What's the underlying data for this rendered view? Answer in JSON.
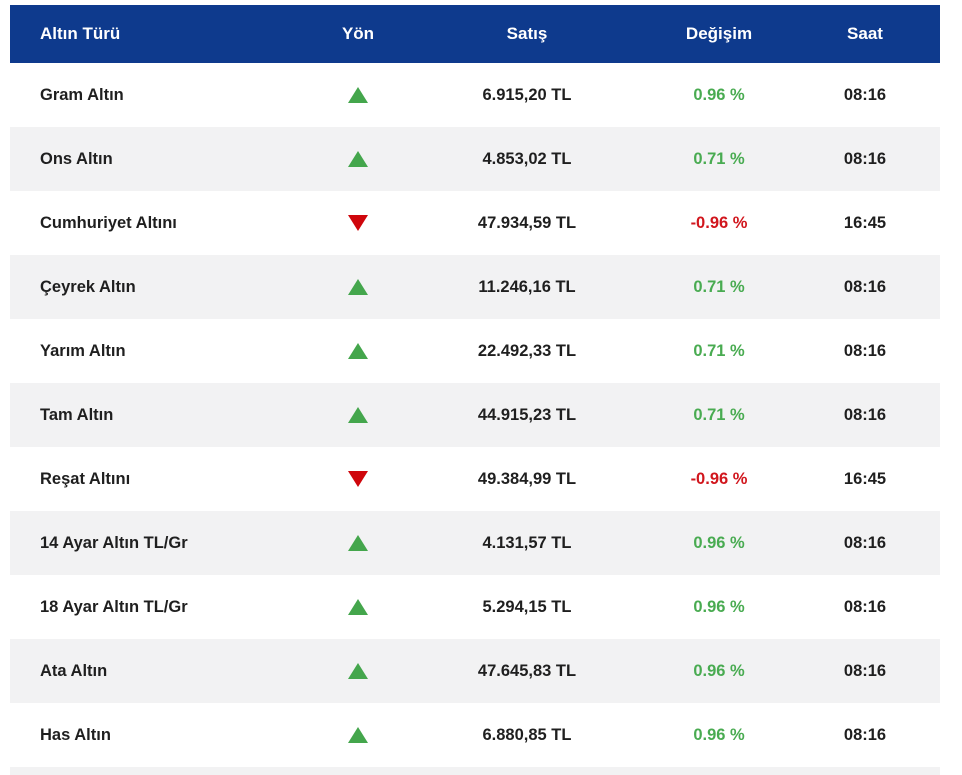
{
  "table": {
    "columns": [
      {
        "label": "Altın Türü"
      },
      {
        "label": "Yön"
      },
      {
        "label": "Satış"
      },
      {
        "label": "Değişim"
      },
      {
        "label": "Saat"
      }
    ],
    "rows": [
      {
        "type": "Gram Altın",
        "direction": "up",
        "price": "6.915,20 TL",
        "change": "0.96 %",
        "time": "08:16"
      },
      {
        "type": "Ons Altın",
        "direction": "up",
        "price": "4.853,02 TL",
        "change": "0.71 %",
        "time": "08:16"
      },
      {
        "type": "Cumhuriyet Altını",
        "direction": "down",
        "price": "47.934,59 TL",
        "change": "-0.96 %",
        "time": "16:45"
      },
      {
        "type": "Çeyrek Altın",
        "direction": "up",
        "price": "11.246,16 TL",
        "change": "0.71 %",
        "time": "08:16"
      },
      {
        "type": "Yarım Altın",
        "direction": "up",
        "price": "22.492,33 TL",
        "change": "0.71 %",
        "time": "08:16"
      },
      {
        "type": "Tam Altın",
        "direction": "up",
        "price": "44.915,23 TL",
        "change": "0.71 %",
        "time": "08:16"
      },
      {
        "type": "Reşat Altını",
        "direction": "down",
        "price": "49.384,99 TL",
        "change": "-0.96 %",
        "time": "16:45"
      },
      {
        "type": "14 Ayar Altın TL/Gr",
        "direction": "up",
        "price": "4.131,57 TL",
        "change": "0.96 %",
        "time": "08:16"
      },
      {
        "type": "18 Ayar Altın TL/Gr",
        "direction": "up",
        "price": "5.294,15 TL",
        "change": "0.96 %",
        "time": "08:16"
      },
      {
        "type": "Ata Altın",
        "direction": "up",
        "price": "47.645,83 TL",
        "change": "0.96 %",
        "time": "08:16"
      },
      {
        "type": "Has Altın",
        "direction": "up",
        "price": "6.880,85 TL",
        "change": "0.96 %",
        "time": "08:16"
      }
    ]
  },
  "colors": {
    "header_background": "#0e3a8d",
    "stripe_background": "#f2f2f3",
    "positive_green": "#49ab51",
    "negative_red": "#d1161d",
    "triangle_up_green": "#44a64c",
    "triangle_down_red": "#cf060c",
    "text_ink": "#1f1f1f"
  }
}
